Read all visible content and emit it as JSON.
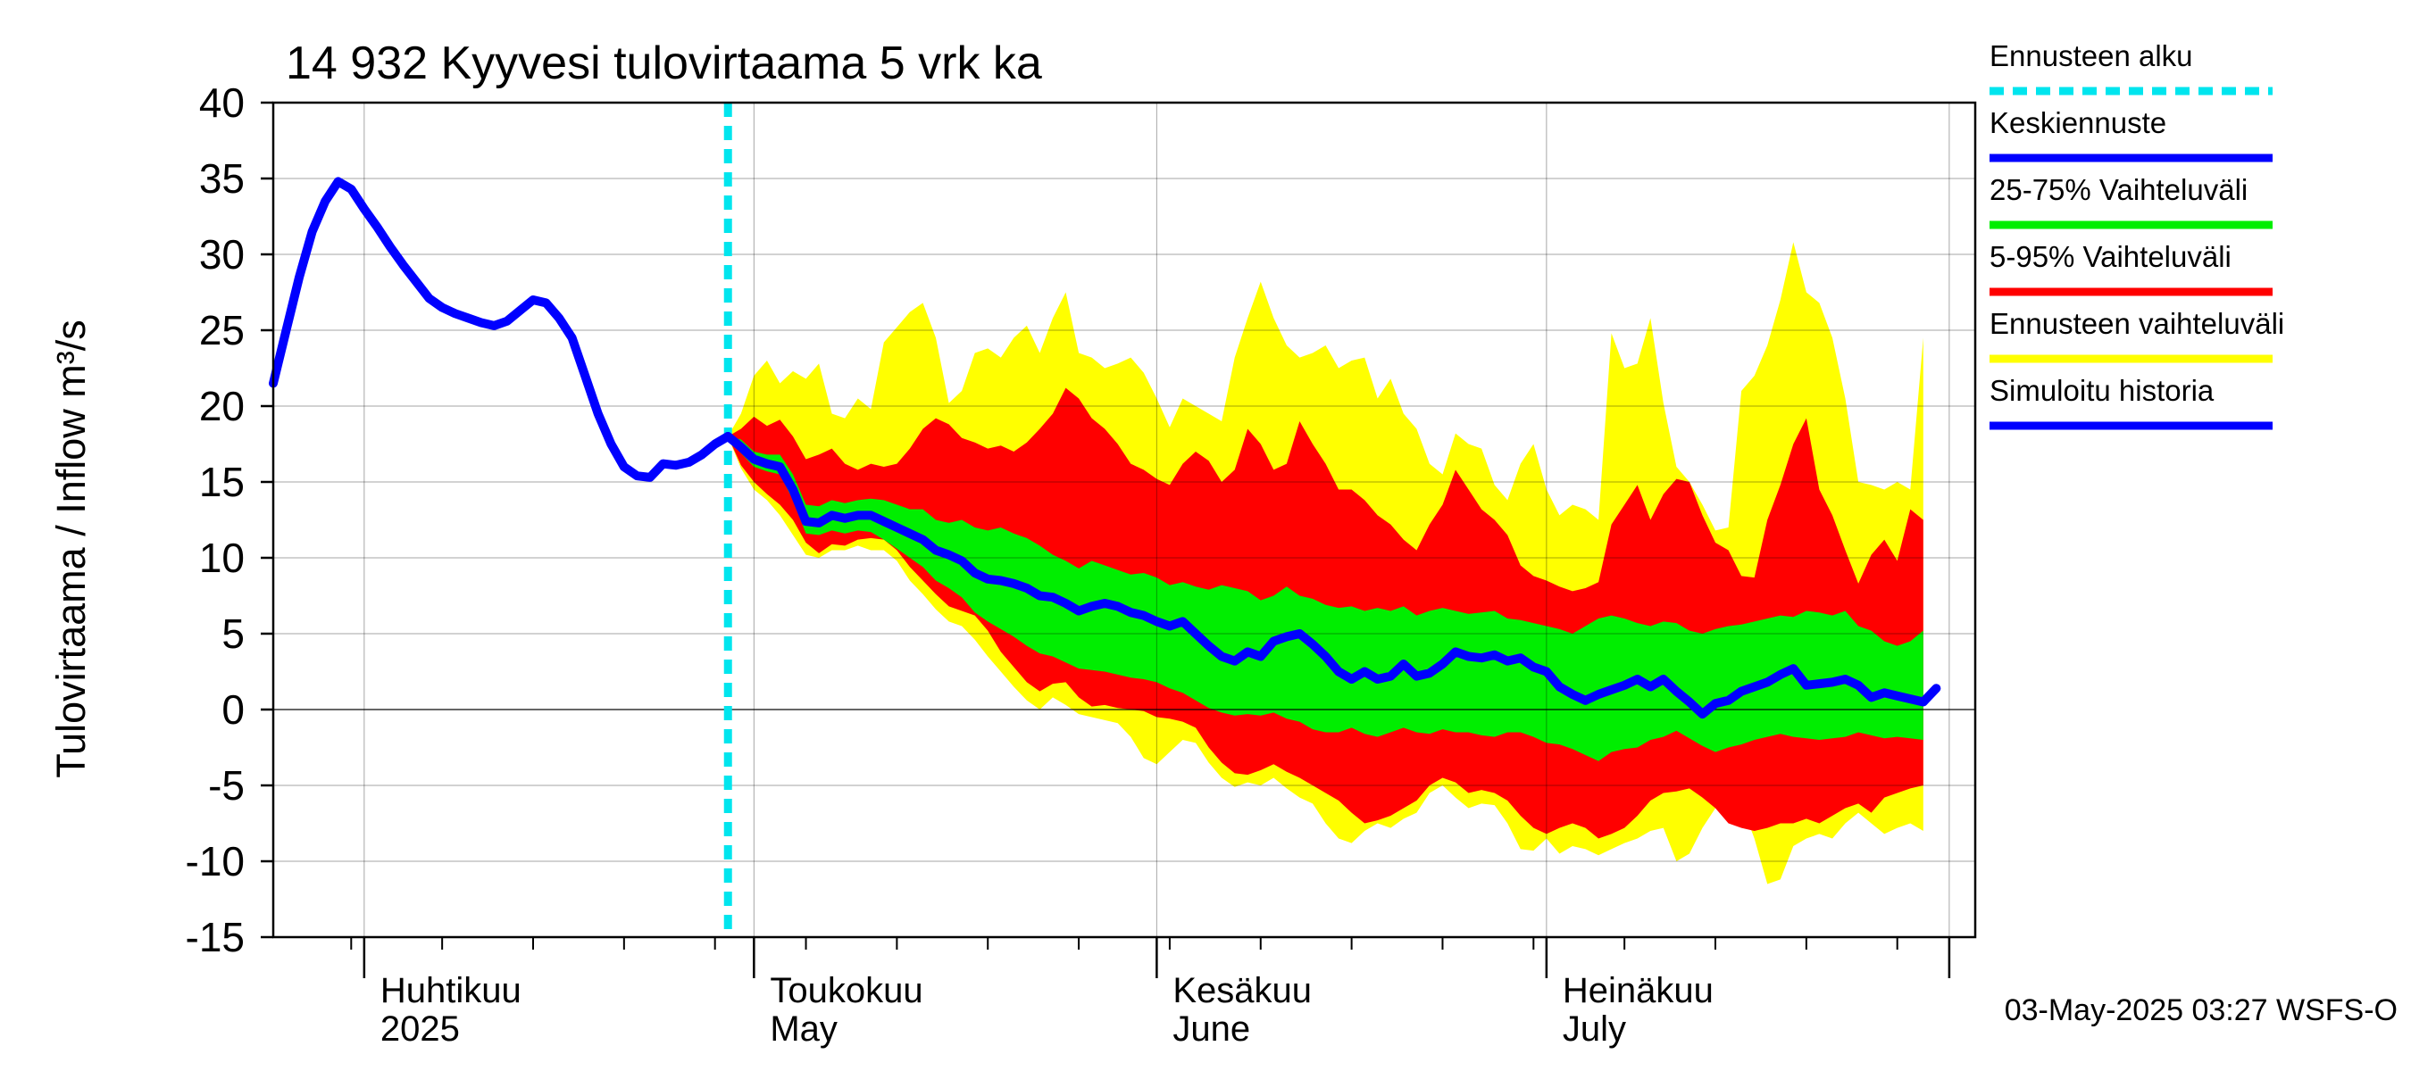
{
  "chart_data": {
    "type": "area",
    "title": "14 932 Kyyvesi tulovirtaama 5 vrk ka",
    "ylabel": "Tulovirtaama / Inflow    m³/s",
    "ylim": [
      -15,
      40
    ],
    "yticks": [
      -15,
      -10,
      -5,
      0,
      5,
      10,
      15,
      20,
      25,
      30,
      35,
      40
    ],
    "xlim": [
      "2025-03-25",
      "2025-08-03"
    ],
    "month_labels": [
      {
        "date": "2025-04-01",
        "fi": "Huhtikuu",
        "en": "2025"
      },
      {
        "date": "2025-05-01",
        "fi": "Toukokuu",
        "en": "May"
      },
      {
        "date": "2025-06-01",
        "fi": "Kesäkuu",
        "en": "June"
      },
      {
        "date": "2025-07-01",
        "fi": "Heinäkuu",
        "en": "July"
      }
    ],
    "forecast_start": "2025-04-29",
    "legend_position": "right",
    "colors": {
      "forecast_start": "#00e5ee",
      "mean": "#0000ff",
      "band_25_75": "#00ee00",
      "band_5_95": "#ff0000",
      "band_full": "#ffff00",
      "history": "#0000ff"
    },
    "series": [
      {
        "name": "Simuloitu historia",
        "role": "history",
        "points": [
          [
            "2025-03-25",
            21.5
          ],
          [
            "2025-03-26",
            25
          ],
          [
            "2025-03-27",
            28.5
          ],
          [
            "2025-03-28",
            31.5
          ],
          [
            "2025-03-29",
            33.5
          ],
          [
            "2025-03-30",
            34.8
          ],
          [
            "2025-03-31",
            34.3
          ],
          [
            "2025-04-01",
            33
          ],
          [
            "2025-04-02",
            31.8
          ],
          [
            "2025-04-03",
            30.5
          ],
          [
            "2025-04-04",
            29.3
          ],
          [
            "2025-04-05",
            28.2
          ],
          [
            "2025-04-06",
            27.1
          ],
          [
            "2025-04-07",
            26.5
          ],
          [
            "2025-04-08",
            26.1
          ],
          [
            "2025-04-09",
            25.8
          ],
          [
            "2025-04-10",
            25.5
          ],
          [
            "2025-04-11",
            25.3
          ],
          [
            "2025-04-12",
            25.6
          ],
          [
            "2025-04-13",
            26.3
          ],
          [
            "2025-04-14",
            27
          ],
          [
            "2025-04-15",
            26.8
          ],
          [
            "2025-04-16",
            25.8
          ],
          [
            "2025-04-17",
            24.5
          ],
          [
            "2025-04-18",
            22
          ],
          [
            "2025-04-19",
            19.5
          ],
          [
            "2025-04-20",
            17.5
          ],
          [
            "2025-04-21",
            16
          ],
          [
            "2025-04-22",
            15.4
          ],
          [
            "2025-04-23",
            15.3
          ],
          [
            "2025-04-24",
            16.2
          ],
          [
            "2025-04-25",
            16.1
          ],
          [
            "2025-04-26",
            16.3
          ],
          [
            "2025-04-27",
            16.8
          ],
          [
            "2025-04-28",
            17.5
          ],
          [
            "2025-04-29",
            18
          ]
        ]
      },
      {
        "name": "Keskiennuste",
        "role": "mean",
        "points": [
          [
            "2025-04-29",
            18
          ],
          [
            "2025-04-30",
            17.3
          ],
          [
            "2025-05-01",
            16.5
          ],
          [
            "2025-05-02",
            16.2
          ],
          [
            "2025-05-03",
            16
          ],
          [
            "2025-05-04",
            14.5
          ],
          [
            "2025-05-05",
            12.4
          ],
          [
            "2025-05-06",
            12.3
          ],
          [
            "2025-05-07",
            12.8
          ],
          [
            "2025-05-08",
            12.6
          ],
          [
            "2025-05-09",
            12.8
          ],
          [
            "2025-05-10",
            12.8
          ],
          [
            "2025-05-11",
            12.4
          ],
          [
            "2025-05-12",
            12
          ],
          [
            "2025-05-13",
            11.6
          ],
          [
            "2025-05-14",
            11.2
          ],
          [
            "2025-05-15",
            10.5
          ],
          [
            "2025-05-16",
            10.2
          ],
          [
            "2025-05-17",
            9.8
          ],
          [
            "2025-05-18",
            9
          ],
          [
            "2025-05-19",
            8.6
          ],
          [
            "2025-05-20",
            8.5
          ],
          [
            "2025-05-21",
            8.3
          ],
          [
            "2025-05-22",
            8
          ],
          [
            "2025-05-23",
            7.5
          ],
          [
            "2025-05-24",
            7.4
          ],
          [
            "2025-05-25",
            7
          ],
          [
            "2025-05-26",
            6.5
          ],
          [
            "2025-05-27",
            6.8
          ],
          [
            "2025-05-28",
            7
          ],
          [
            "2025-05-29",
            6.8
          ],
          [
            "2025-05-30",
            6.4
          ],
          [
            "2025-05-31",
            6.2
          ],
          [
            "2025-06-01",
            5.8
          ],
          [
            "2025-06-02",
            5.5
          ],
          [
            "2025-06-03",
            5.8
          ],
          [
            "2025-06-04",
            5
          ],
          [
            "2025-06-05",
            4.2
          ],
          [
            "2025-06-06",
            3.5
          ],
          [
            "2025-06-07",
            3.2
          ],
          [
            "2025-06-08",
            3.8
          ],
          [
            "2025-06-09",
            3.5
          ],
          [
            "2025-06-10",
            4.5
          ],
          [
            "2025-06-11",
            4.8
          ],
          [
            "2025-06-12",
            5
          ],
          [
            "2025-06-13",
            4.3
          ],
          [
            "2025-06-14",
            3.5
          ],
          [
            "2025-06-15",
            2.5
          ],
          [
            "2025-06-16",
            2
          ],
          [
            "2025-06-17",
            2.5
          ],
          [
            "2025-06-18",
            2
          ],
          [
            "2025-06-19",
            2.2
          ],
          [
            "2025-06-20",
            3
          ],
          [
            "2025-06-21",
            2.2
          ],
          [
            "2025-06-22",
            2.4
          ],
          [
            "2025-06-23",
            3
          ],
          [
            "2025-06-24",
            3.8
          ],
          [
            "2025-06-25",
            3.5
          ],
          [
            "2025-06-26",
            3.4
          ],
          [
            "2025-06-27",
            3.6
          ],
          [
            "2025-06-28",
            3.2
          ],
          [
            "2025-06-29",
            3.4
          ],
          [
            "2025-06-30",
            2.8
          ],
          [
            "2025-07-01",
            2.5
          ],
          [
            "2025-07-02",
            1.5
          ],
          [
            "2025-07-03",
            1
          ],
          [
            "2025-07-04",
            0.6
          ],
          [
            "2025-07-05",
            1
          ],
          [
            "2025-07-06",
            1.3
          ],
          [
            "2025-07-07",
            1.6
          ],
          [
            "2025-07-08",
            2
          ],
          [
            "2025-07-09",
            1.5
          ],
          [
            "2025-07-10",
            2
          ],
          [
            "2025-07-11",
            1.2
          ],
          [
            "2025-07-12",
            0.5
          ],
          [
            "2025-07-13",
            -0.3
          ],
          [
            "2025-07-14",
            0.4
          ],
          [
            "2025-07-15",
            0.6
          ],
          [
            "2025-07-16",
            1.2
          ],
          [
            "2025-07-17",
            1.5
          ],
          [
            "2025-07-18",
            1.8
          ],
          [
            "2025-07-19",
            2.3
          ],
          [
            "2025-07-20",
            2.7
          ],
          [
            "2025-07-21",
            1.6
          ],
          [
            "2025-07-22",
            1.7
          ],
          [
            "2025-07-23",
            1.8
          ],
          [
            "2025-07-24",
            2
          ],
          [
            "2025-07-25",
            1.6
          ],
          [
            "2025-07-26",
            0.8
          ],
          [
            "2025-07-27",
            1.1
          ],
          [
            "2025-07-28",
            0.9
          ],
          [
            "2025-07-29",
            0.7
          ],
          [
            "2025-07-30",
            0.5
          ],
          [
            "2025-07-31",
            1.4
          ]
        ]
      },
      {
        "name": "25-75% Vaihteluväli",
        "role": "band_25_75",
        "upper": [
          18,
          17.8,
          17,
          16.8,
          16.8,
          15.5,
          13.5,
          13.4,
          13.8,
          13.6,
          13.8,
          13.9,
          13.8,
          13.5,
          13.2,
          13.2,
          12.5,
          12.3,
          12.5,
          12,
          11.8,
          12,
          11.6,
          11.3,
          10.8,
          10.2,
          9.8,
          9.3,
          9.8,
          9.5,
          9.2,
          8.9,
          9,
          8.7,
          8.2,
          8.4,
          8.1,
          7.9,
          8.2,
          8,
          7.8,
          7.2,
          7.5,
          8.1,
          7.5,
          7.3,
          6.9,
          6.7,
          6.8,
          6.5,
          6.7,
          6.5,
          6.8,
          6.2,
          6.5,
          6.7,
          6.5,
          6.3,
          6.4,
          6.5,
          6,
          5.9,
          5.7,
          5.5,
          5.3,
          5,
          5.5,
          6,
          6.2,
          6,
          5.7,
          5.5,
          5.8,
          5.7,
          5.2,
          5,
          5.3,
          5.5,
          5.6,
          5.8,
          6,
          6.2,
          6.1,
          6.5,
          6.4,
          6.2,
          6.5,
          5.5,
          5.2,
          4.5,
          4.2,
          4.5,
          5.2
        ],
        "lower": [
          18,
          16.9,
          16,
          15.7,
          15.5,
          13.8,
          11.6,
          11.5,
          11.8,
          11.6,
          11.8,
          11.7,
          11.2,
          10.6,
          10,
          9.4,
          8.5,
          8,
          7.4,
          6.4,
          5.8,
          5.3,
          4.8,
          4.2,
          3.7,
          3.5,
          3.1,
          2.7,
          2.6,
          2.5,
          2.3,
          2.1,
          2,
          1.8,
          1.4,
          1.1,
          0.6,
          0.1,
          -0.2,
          -0.4,
          -0.3,
          -0.4,
          -0.2,
          -0.6,
          -0.8,
          -1.3,
          -1.5,
          -1.5,
          -1.2,
          -1.6,
          -1.8,
          -1.5,
          -1.2,
          -1.5,
          -1.6,
          -1.3,
          -1.5,
          -1.5,
          -1.7,
          -1.8,
          -1.5,
          -1.5,
          -1.8,
          -2.2,
          -2.3,
          -2.6,
          -3,
          -3.4,
          -2.8,
          -2.6,
          -2.5,
          -2,
          -1.8,
          -1.4,
          -1.9,
          -2.4,
          -2.8,
          -2.5,
          -2.3,
          -2,
          -1.8,
          -1.6,
          -1.8,
          -1.9,
          -2,
          -1.9,
          -1.8,
          -1.5,
          -1.7,
          -1.9,
          -1.8,
          -1.9,
          -2
        ]
      },
      {
        "name": "5-95% Vaihteluväli",
        "role": "band_5_95",
        "upper": [
          18,
          18.5,
          19.3,
          18.7,
          19.1,
          18,
          16.5,
          16.8,
          17.2,
          16.2,
          15.8,
          16.2,
          16,
          16.2,
          17.2,
          18.5,
          19.2,
          18.8,
          17.9,
          17.6,
          17.2,
          17.4,
          17,
          17.6,
          18.5,
          19.5,
          21.2,
          20.5,
          19.2,
          18.5,
          17.5,
          16.2,
          15.8,
          15.2,
          14.8,
          16.2,
          17,
          16.4,
          15,
          15.8,
          18.5,
          17.5,
          15.8,
          16.2,
          19,
          17.5,
          16.2,
          14.5,
          14.5,
          13.8,
          12.8,
          12.2,
          11.2,
          10.5,
          12.2,
          13.5,
          15.8,
          14.5,
          13.2,
          12.5,
          11.5,
          9.5,
          8.8,
          8.5,
          8.1,
          7.8,
          8,
          8.4,
          12.2,
          13.5,
          14.8,
          12.5,
          14.2,
          15.2,
          15,
          12.8,
          11,
          10.5,
          8.8,
          8.7,
          12.5,
          14.8,
          17.5,
          19.2,
          14.5,
          12.8,
          10.5,
          8.3,
          10.2,
          11.2,
          9.8,
          13.2,
          12.5
        ],
        "lower": [
          18,
          16.1,
          15,
          14.2,
          13.5,
          12.5,
          11,
          10.3,
          10.9,
          10.8,
          11.2,
          11.3,
          11.2,
          10.5,
          9.4,
          8.5,
          7.6,
          6.8,
          6.5,
          6.2,
          5.2,
          3.8,
          2.8,
          1.8,
          1.2,
          1.7,
          1.8,
          0.8,
          0.2,
          0.3,
          0.1,
          0,
          -0.1,
          -0.5,
          -0.6,
          -0.8,
          -1.2,
          -2.5,
          -3.5,
          -4.2,
          -4.3,
          -4,
          -3.6,
          -4.1,
          -4.5,
          -5,
          -5.5,
          -6,
          -6.8,
          -7.5,
          -7.3,
          -7,
          -6.5,
          -6,
          -5,
          -4.5,
          -4.8,
          -5.5,
          -5.3,
          -5.5,
          -6,
          -7,
          -7.8,
          -8.2,
          -7.8,
          -7.5,
          -7.8,
          -8.5,
          -8.2,
          -7.8,
          -7,
          -6,
          -5.5,
          -5.4,
          -5.2,
          -5.8,
          -6.5,
          -7.5,
          -7.8,
          -8,
          -7.8,
          -7.5,
          -7.5,
          -7.2,
          -7.5,
          -7,
          -6.5,
          -6.2,
          -6.8,
          -5.8,
          -5.5,
          -5.2,
          -5
        ]
      },
      {
        "name": "Ennusteen vaihteluväli",
        "role": "band_full",
        "upper": [
          18,
          19.5,
          22,
          23,
          21.5,
          22.3,
          21.8,
          22.8,
          19.5,
          19.2,
          20.5,
          19.8,
          24.2,
          25.2,
          26.2,
          26.8,
          24.5,
          20.2,
          21,
          23.5,
          23.8,
          23.2,
          24.5,
          25.3,
          23.5,
          25.8,
          27.5,
          23.5,
          23.2,
          22.5,
          22.8,
          23.2,
          22.2,
          20.5,
          18.6,
          20.5,
          20,
          19.5,
          19,
          23.2,
          25.8,
          28.2,
          25.8,
          24,
          23.2,
          23.5,
          24,
          22.5,
          23,
          23.2,
          20.5,
          21.8,
          19.5,
          18.5,
          16.2,
          15.5,
          18.2,
          17.5,
          17.2,
          14.8,
          13.8,
          16.2,
          17.5,
          14.5,
          12.8,
          13.5,
          13.2,
          12.5,
          24.8,
          22.5,
          22.8,
          25.8,
          20.2,
          16,
          15,
          13.5,
          11.8,
          12,
          21,
          22,
          24,
          27,
          30.8,
          27.5,
          26.8,
          24.5,
          20.5,
          15,
          14.8,
          14.5,
          15,
          14.5,
          24.5
        ],
        "lower": [
          18,
          15.9,
          14.5,
          13.8,
          12.8,
          11.5,
          10.2,
          10,
          10.5,
          10.5,
          10.8,
          10.5,
          10.5,
          9.8,
          8.5,
          7.6,
          6.6,
          5.8,
          5.5,
          4.6,
          3.5,
          2.5,
          1.5,
          0.6,
          0,
          0.8,
          0.3,
          -0.3,
          -0.5,
          -0.7,
          -0.9,
          -1.8,
          -3.2,
          -3.6,
          -2.8,
          -2,
          -2.2,
          -3.5,
          -4.5,
          -5.1,
          -4.8,
          -5,
          -4.5,
          -5.2,
          -5.8,
          -6.2,
          -7.5,
          -8.5,
          -8.8,
          -8,
          -7.5,
          -7.8,
          -7.2,
          -6.8,
          -5.5,
          -5,
          -5.8,
          -6.5,
          -6.2,
          -6.3,
          -7.5,
          -9.2,
          -9.3,
          -8.5,
          -9.5,
          -9,
          -9.2,
          -9.6,
          -9.2,
          -8.8,
          -8.5,
          -8,
          -7.8,
          -10,
          -9.5,
          -7.8,
          -6.5,
          -5.8,
          -6.2,
          -8.5,
          -11.5,
          -11.2,
          -9,
          -8.5,
          -8.2,
          -8.5,
          -7.5,
          -6.8,
          -7.5,
          -8.2,
          -7.8,
          -7.5,
          -8
        ]
      }
    ],
    "legend": [
      {
        "label": "Ennusteen alku",
        "role": "forecast_start"
      },
      {
        "label": "Keskiennuste",
        "role": "mean"
      },
      {
        "label": "25-75% Vaihteluväli",
        "role": "band_25_75"
      },
      {
        "label": "5-95% Vaihteluväli",
        "role": "band_5_95"
      },
      {
        "label": "Ennusteen vaihteluväli",
        "role": "band_full"
      },
      {
        "label": "Simuloitu historia",
        "role": "history"
      }
    ],
    "footer": "03-May-2025 03:27 WSFS-O"
  }
}
